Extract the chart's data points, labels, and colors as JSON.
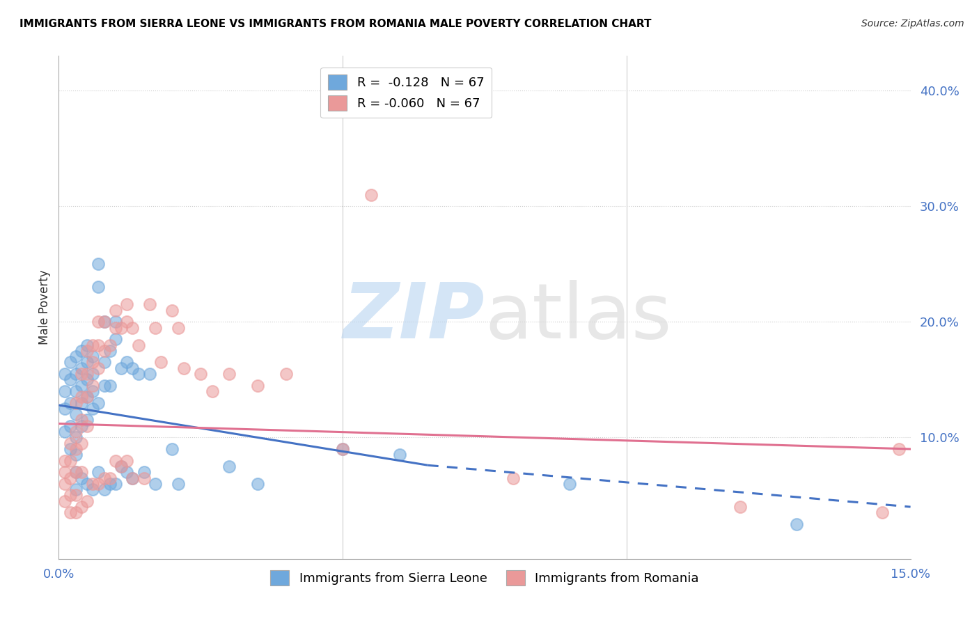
{
  "title": "IMMIGRANTS FROM SIERRA LEONE VS IMMIGRANTS FROM ROMANIA MALE POVERTY CORRELATION CHART",
  "source": "Source: ZipAtlas.com",
  "ylabel": "Male Poverty",
  "right_yticks": [
    "40.0%",
    "30.0%",
    "20.0%",
    "10.0%"
  ],
  "right_ytick_vals": [
    0.4,
    0.3,
    0.2,
    0.1
  ],
  "xmin": 0.0,
  "xmax": 0.15,
  "ymin": -0.005,
  "ymax": 0.43,
  "color_sierra": "#6fa8dc",
  "color_romania": "#ea9999",
  "color_sierra_line": "#4472c4",
  "color_romania_line": "#e07090",
  "sl_line_start_y": 0.128,
  "sl_line_end_y": 0.076,
  "sl_line_end_x": 0.065,
  "sl_line_dash_end_y": 0.04,
  "ro_line_start_y": 0.112,
  "ro_line_end_y": 0.09,
  "sierra_leone_x": [
    0.001,
    0.001,
    0.001,
    0.001,
    0.002,
    0.002,
    0.002,
    0.002,
    0.002,
    0.003,
    0.003,
    0.003,
    0.003,
    0.003,
    0.003,
    0.003,
    0.003,
    0.004,
    0.004,
    0.004,
    0.004,
    0.004,
    0.004,
    0.005,
    0.005,
    0.005,
    0.005,
    0.005,
    0.005,
    0.006,
    0.006,
    0.006,
    0.006,
    0.006,
    0.007,
    0.007,
    0.007,
    0.007,
    0.008,
    0.008,
    0.008,
    0.008,
    0.009,
    0.009,
    0.009,
    0.01,
    0.01,
    0.01,
    0.011,
    0.011,
    0.012,
    0.012,
    0.013,
    0.013,
    0.014,
    0.015,
    0.016,
    0.017,
    0.02,
    0.021,
    0.03,
    0.035,
    0.05,
    0.06,
    0.09,
    0.13
  ],
  "sierra_leone_y": [
    0.155,
    0.14,
    0.125,
    0.105,
    0.165,
    0.15,
    0.13,
    0.11,
    0.09,
    0.17,
    0.155,
    0.14,
    0.12,
    0.1,
    0.085,
    0.07,
    0.055,
    0.175,
    0.16,
    0.145,
    0.13,
    0.11,
    0.065,
    0.18,
    0.165,
    0.15,
    0.135,
    0.115,
    0.06,
    0.17,
    0.155,
    0.14,
    0.125,
    0.055,
    0.25,
    0.23,
    0.13,
    0.07,
    0.2,
    0.165,
    0.145,
    0.055,
    0.175,
    0.145,
    0.06,
    0.2,
    0.185,
    0.06,
    0.16,
    0.075,
    0.165,
    0.07,
    0.16,
    0.065,
    0.155,
    0.07,
    0.155,
    0.06,
    0.09,
    0.06,
    0.075,
    0.06,
    0.09,
    0.085,
    0.06,
    0.025
  ],
  "romania_x": [
    0.001,
    0.001,
    0.001,
    0.001,
    0.002,
    0.002,
    0.002,
    0.002,
    0.002,
    0.003,
    0.003,
    0.003,
    0.003,
    0.003,
    0.003,
    0.004,
    0.004,
    0.004,
    0.004,
    0.004,
    0.004,
    0.005,
    0.005,
    0.005,
    0.005,
    0.005,
    0.006,
    0.006,
    0.006,
    0.006,
    0.007,
    0.007,
    0.007,
    0.007,
    0.008,
    0.008,
    0.008,
    0.009,
    0.009,
    0.01,
    0.01,
    0.01,
    0.011,
    0.011,
    0.012,
    0.012,
    0.012,
    0.013,
    0.013,
    0.014,
    0.015,
    0.016,
    0.017,
    0.018,
    0.02,
    0.021,
    0.022,
    0.025,
    0.027,
    0.03,
    0.035,
    0.04,
    0.05,
    0.055,
    0.08,
    0.12,
    0.145,
    0.148
  ],
  "romania_y": [
    0.08,
    0.07,
    0.06,
    0.045,
    0.095,
    0.08,
    0.065,
    0.05,
    0.035,
    0.13,
    0.105,
    0.09,
    0.07,
    0.05,
    0.035,
    0.155,
    0.135,
    0.115,
    0.095,
    0.07,
    0.04,
    0.175,
    0.155,
    0.135,
    0.11,
    0.045,
    0.18,
    0.165,
    0.145,
    0.06,
    0.2,
    0.18,
    0.16,
    0.06,
    0.2,
    0.175,
    0.065,
    0.18,
    0.065,
    0.21,
    0.195,
    0.08,
    0.195,
    0.075,
    0.215,
    0.2,
    0.08,
    0.195,
    0.065,
    0.18,
    0.065,
    0.215,
    0.195,
    0.165,
    0.21,
    0.195,
    0.16,
    0.155,
    0.14,
    0.155,
    0.145,
    0.155,
    0.09,
    0.31,
    0.065,
    0.04,
    0.035,
    0.09
  ]
}
